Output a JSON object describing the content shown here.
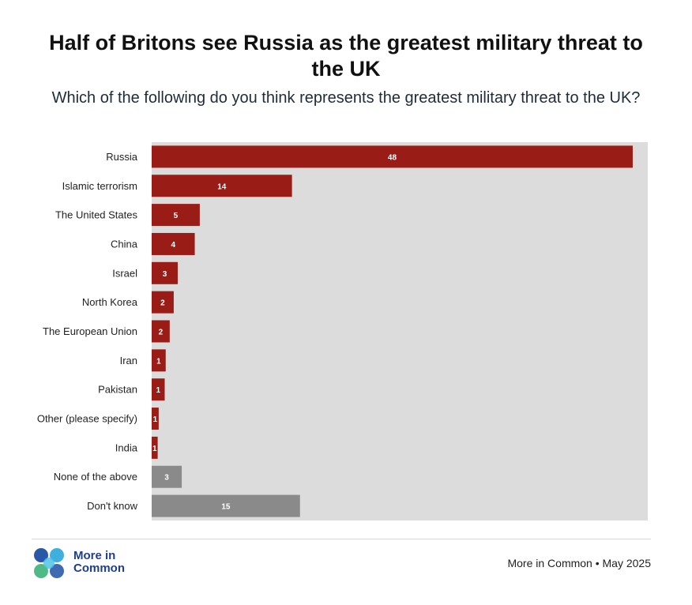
{
  "header": {
    "title": "Half of Britons see Russia as the greatest military threat to the UK",
    "subtitle": "Which of the following do you think represents the greatest military threat to the UK?"
  },
  "chart_data": {
    "type": "bar",
    "orientation": "horizontal",
    "categories": [
      "Russia",
      "Islamic terrorism",
      "The United States",
      "China",
      "Israel",
      "North Korea",
      "The European Union",
      "Iran",
      "Pakistan",
      "Other (please specify)",
      "India",
      "None of the above",
      "Don't know"
    ],
    "values": [
      48,
      14,
      5,
      4,
      3,
      2,
      2,
      1,
      1,
      1,
      1,
      3,
      15
    ],
    "value_labels": [
      "48",
      "14",
      "5",
      "4",
      "3",
      "2",
      "2",
      "1",
      "1",
      "1",
      "1",
      "3",
      "15"
    ],
    "groups": [
      "threat",
      "threat",
      "threat",
      "threat",
      "threat",
      "threat",
      "threat",
      "threat",
      "threat",
      "threat",
      "threat",
      "other",
      "other"
    ],
    "xlim": [
      0,
      49.5
    ],
    "colors": {
      "threat": "#9a1c16",
      "other": "#8a8a8a",
      "background": "#dcdcdc",
      "label": "#ffffff"
    },
    "values_precise": [
      48,
      14,
      4.8,
      4.3,
      2.6,
      2.2,
      1.8,
      1.4,
      1.3,
      0.7,
      0.6,
      3.0,
      14.8
    ]
  },
  "footer": {
    "logo_line1": "More in",
    "logo_line2": "Common",
    "source": "More in Common • May 2025"
  }
}
